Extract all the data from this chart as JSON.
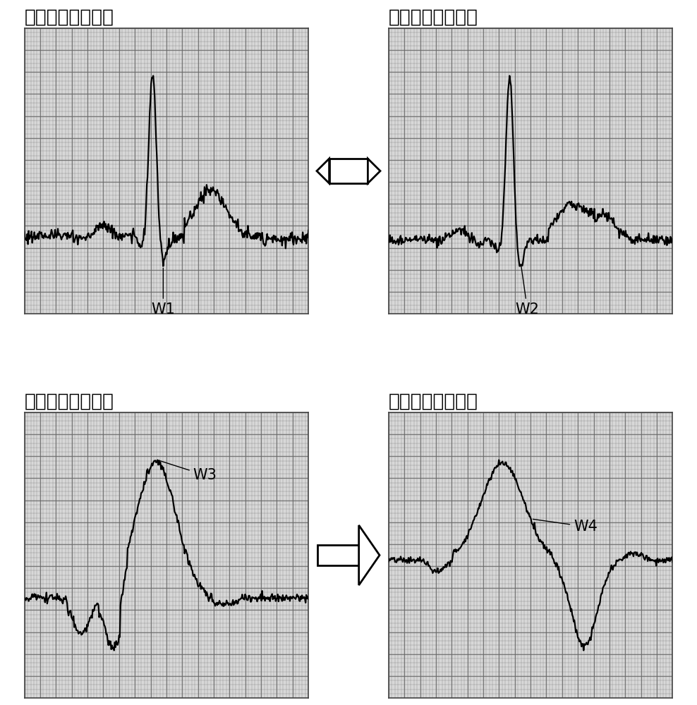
{
  "title1": "第一窦性节律波形",
  "title2": "第二窦性节律波形",
  "title3": "第一心律失常波形",
  "title4": "第二心律失常波形",
  "label1": "W1",
  "label2": "W2",
  "label3": "W3",
  "label4": "W4",
  "bg_color": "#ffffff",
  "grid_cross_color": "#555555",
  "wave_color": "#000000",
  "title_fontsize": 19,
  "label_fontsize": 15,
  "grid_nx": 18,
  "grid_ny": 13
}
